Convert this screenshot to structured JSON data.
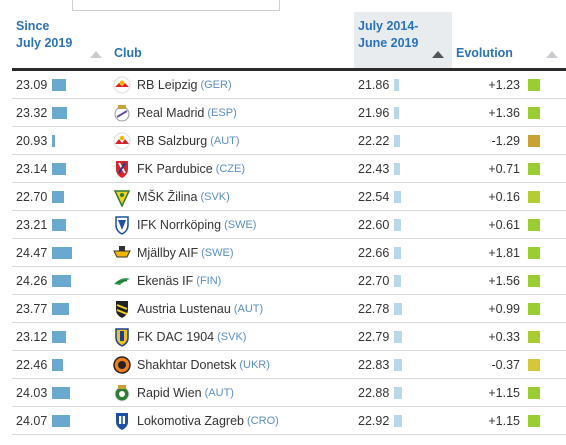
{
  "headers": {
    "since": [
      "Since",
      "July 2019"
    ],
    "club": "Club",
    "period": [
      "July 2014-",
      "June 2019"
    ],
    "evolution": "Evolution"
  },
  "rows": [
    {
      "since": "23.09",
      "since_frac": 0.62,
      "club": "RB Leipzig",
      "country": "(GER)",
      "icon": "rb-leipzig-logo",
      "period": "21.86",
      "period_frac": 0.45,
      "evolution": "+1.23",
      "evo_color": "#9acd32"
    },
    {
      "since": "23.32",
      "since_frac": 0.66,
      "club": "Real Madrid",
      "country": "(ESP)",
      "icon": "real-madrid-logo",
      "period": "21.96",
      "period_frac": 0.47,
      "evolution": "+1.36",
      "evo_color": "#9acd32"
    },
    {
      "since": "20.93",
      "since_frac": 0.12,
      "club": "RB Salzburg",
      "country": "(AUT)",
      "icon": "rb-salzburg-logo",
      "period": "22.22",
      "period_frac": 0.55,
      "evolution": "-1.29",
      "evo_color": "#c9a236"
    },
    {
      "since": "23.14",
      "since_frac": 0.63,
      "club": "FK Pardubice",
      "country": "(CZE)",
      "icon": "fk-pardubice-logo",
      "period": "22.43",
      "period_frac": 0.62,
      "evolution": "+0.71",
      "evo_color": "#9acd32"
    },
    {
      "since": "22.70",
      "since_frac": 0.55,
      "club": "MŠK Žilina",
      "country": "(SVK)",
      "icon": "msk-zilina-logo",
      "period": "22.54",
      "period_frac": 0.66,
      "evolution": "+0.16",
      "evo_color": "#b5cc33"
    },
    {
      "since": "23.21",
      "since_frac": 0.64,
      "club": "IFK Norrköping",
      "country": "(SWE)",
      "icon": "ifk-norrkoping-logo",
      "period": "22.60",
      "period_frac": 0.68,
      "evolution": "+0.61",
      "evo_color": "#9acd32"
    },
    {
      "since": "24.47",
      "since_frac": 0.9,
      "club": "Mjällby AIF",
      "country": "(SWE)",
      "icon": "mjallby-aif-logo",
      "period": "22.66",
      "period_frac": 0.7,
      "evolution": "+1.81",
      "evo_color": "#9acd32"
    },
    {
      "since": "24.26",
      "since_frac": 0.86,
      "club": "Ekenäs IF",
      "country": "(FIN)",
      "icon": "ekenas-if-logo",
      "period": "22.70",
      "period_frac": 0.72,
      "evolution": "+1.56",
      "evo_color": "#9acd32"
    },
    {
      "since": "23.77",
      "since_frac": 0.76,
      "club": "Austria Lustenau",
      "country": "(AUT)",
      "icon": "austria-lustenau-logo",
      "period": "22.78",
      "period_frac": 0.75,
      "evolution": "+0.99",
      "evo_color": "#9acd32"
    },
    {
      "since": "23.12",
      "since_frac": 0.63,
      "club": "FK DAC 1904",
      "country": "(SVK)",
      "icon": "fk-dac-1904-logo",
      "period": "22.79",
      "period_frac": 0.75,
      "evolution": "+0.33",
      "evo_color": "#a9cc33"
    },
    {
      "since": "22.46",
      "since_frac": 0.48,
      "club": "Shakhtar Donetsk",
      "country": "(UKR)",
      "icon": "shakhtar-donetsk-logo",
      "period": "22.83",
      "period_frac": 0.77,
      "evolution": "-0.37",
      "evo_color": "#d4c83a"
    },
    {
      "since": "24.03",
      "since_frac": 0.81,
      "club": "Rapid Wien",
      "country": "(AUT)",
      "icon": "rapid-wien-logo",
      "period": "22.88",
      "period_frac": 0.78,
      "evolution": "+1.15",
      "evo_color": "#9acd32"
    },
    {
      "since": "24.07",
      "since_frac": 0.82,
      "club": "Lokomotiva Zagreb",
      "country": "(CRO)",
      "icon": "lokomotiva-zagreb-logo",
      "period": "22.92",
      "period_frac": 0.8,
      "evolution": "+1.15",
      "evo_color": "#9acd32"
    }
  ],
  "colors": {
    "header_text": "#2a72b8",
    "bar_since": "#6aa9cf",
    "bar_period": "#b7d7ea",
    "country_text": "#5b8ec4"
  }
}
